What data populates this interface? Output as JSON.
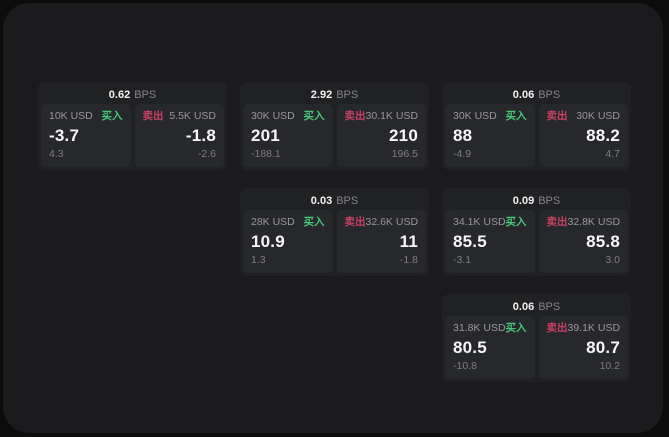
{
  "labels": {
    "unit": "BPS",
    "buy": "买入",
    "sell": "卖出"
  },
  "colors": {
    "page_bg": "#0c0c0d",
    "panel_bg": "#1b1b1d",
    "card_bg": "#202122",
    "subcard_bg": "#27282b",
    "text_primary": "#f7f7f8",
    "text_secondary": "#98989d",
    "text_dim": "#7e7e83",
    "buy_green": "#45c878",
    "sell_red": "#c74064"
  },
  "cards": [
    {
      "bps": "0.62",
      "buy": {
        "notional": "10K USD",
        "price": "-3.7",
        "delta": "4.3"
      },
      "sell": {
        "notional": "5.5K USD",
        "price": "-1.8",
        "delta": "-2.6"
      }
    },
    {
      "bps": "2.92",
      "buy": {
        "notional": "30K USD",
        "price": "201",
        "delta": "-188.1"
      },
      "sell": {
        "notional": "30.1K USD",
        "price": "210",
        "delta": "196.5"
      }
    },
    {
      "bps": "0.06",
      "buy": {
        "notional": "30K USD",
        "price": "88",
        "delta": "-4.9"
      },
      "sell": {
        "notional": "30K USD",
        "price": "88.2",
        "delta": "4.7"
      }
    },
    {
      "bps": "0.03",
      "buy": {
        "notional": "28K USD",
        "price": "10.9",
        "delta": "1.3"
      },
      "sell": {
        "notional": "32.6K USD",
        "price": "11",
        "delta": "-1.8"
      }
    },
    {
      "bps": "0.09",
      "buy": {
        "notional": "34.1K USD",
        "price": "85.5",
        "delta": "-3.1"
      },
      "sell": {
        "notional": "32.8K USD",
        "price": "85.8",
        "delta": "3.0"
      }
    },
    {
      "bps": "0.06",
      "buy": {
        "notional": "31.8K USD",
        "price": "80.5",
        "delta": "-10.8"
      },
      "sell": {
        "notional": "39.1K USD",
        "price": "80.7",
        "delta": "10.2"
      }
    }
  ]
}
